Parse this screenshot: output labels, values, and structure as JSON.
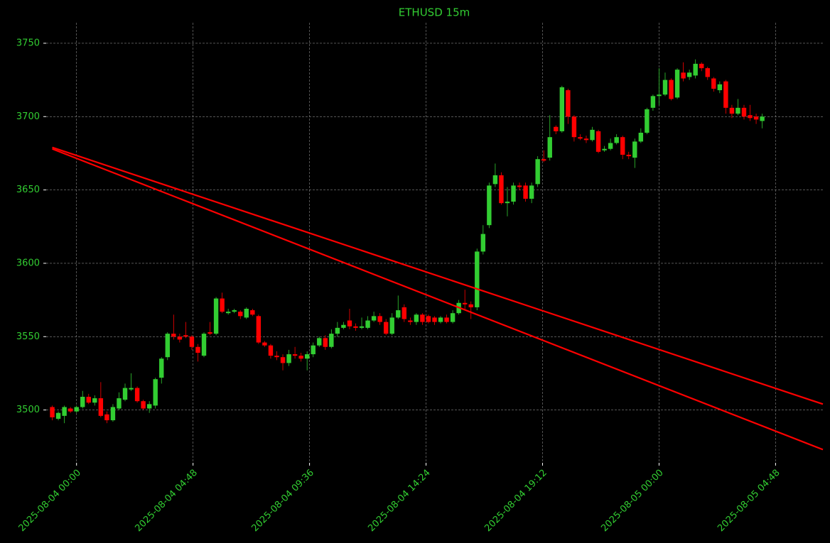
{
  "chart_data": {
    "type": "candlestick",
    "title": "ETHUSD 15m",
    "up_color": "#32cd32",
    "down_color": "#ff0000",
    "grid": true,
    "x": [
      "2025-08-03 23:00",
      "2025-08-03 23:15",
      "2025-08-03 23:30",
      "2025-08-03 23:45",
      "2025-08-04 00:00",
      "2025-08-04 00:15",
      "2025-08-04 00:30",
      "2025-08-04 00:45",
      "2025-08-04 01:00",
      "2025-08-04 01:15",
      "2025-08-04 01:30",
      "2025-08-04 01:45",
      "2025-08-04 02:00",
      "2025-08-04 02:15",
      "2025-08-04 02:30",
      "2025-08-04 02:45",
      "2025-08-04 03:00",
      "2025-08-04 03:15",
      "2025-08-04 03:30",
      "2025-08-04 03:45",
      "2025-08-04 04:00",
      "2025-08-04 04:15",
      "2025-08-04 04:30",
      "2025-08-04 04:45",
      "2025-08-04 05:00",
      "2025-08-04 05:15",
      "2025-08-04 05:30",
      "2025-08-04 05:45",
      "2025-08-04 06:00",
      "2025-08-04 06:15",
      "2025-08-04 06:30",
      "2025-08-04 06:45",
      "2025-08-04 07:00",
      "2025-08-04 07:15",
      "2025-08-04 07:30",
      "2025-08-04 07:45",
      "2025-08-04 08:00",
      "2025-08-04 08:15",
      "2025-08-04 08:30",
      "2025-08-04 08:45",
      "2025-08-04 09:00",
      "2025-08-04 09:15",
      "2025-08-04 09:30",
      "2025-08-04 09:45",
      "2025-08-04 10:00",
      "2025-08-04 10:15",
      "2025-08-04 10:30",
      "2025-08-04 10:45",
      "2025-08-04 11:00",
      "2025-08-04 11:15",
      "2025-08-04 11:30",
      "2025-08-04 11:45",
      "2025-08-04 12:00",
      "2025-08-04 12:15",
      "2025-08-04 12:30",
      "2025-08-04 12:45",
      "2025-08-04 13:00",
      "2025-08-04 13:15",
      "2025-08-04 13:30",
      "2025-08-04 13:45",
      "2025-08-04 14:00",
      "2025-08-04 14:15",
      "2025-08-04 14:30",
      "2025-08-04 14:45",
      "2025-08-04 15:00",
      "2025-08-04 15:15",
      "2025-08-04 15:30",
      "2025-08-04 15:45",
      "2025-08-04 16:00",
      "2025-08-04 16:15",
      "2025-08-04 16:30",
      "2025-08-04 16:45",
      "2025-08-04 17:00",
      "2025-08-04 17:15",
      "2025-08-04 17:30",
      "2025-08-04 17:45",
      "2025-08-04 18:00",
      "2025-08-04 18:15",
      "2025-08-04 18:30",
      "2025-08-04 18:45",
      "2025-08-04 19:00",
      "2025-08-04 19:15",
      "2025-08-04 19:30",
      "2025-08-04 19:45",
      "2025-08-04 20:00",
      "2025-08-04 20:15",
      "2025-08-04 20:30",
      "2025-08-04 20:45",
      "2025-08-04 21:00",
      "2025-08-04 21:15",
      "2025-08-04 21:30",
      "2025-08-04 21:45",
      "2025-08-04 22:00",
      "2025-08-04 22:15",
      "2025-08-04 22:30",
      "2025-08-04 22:45",
      "2025-08-04 23:00",
      "2025-08-04 23:15",
      "2025-08-04 23:30",
      "2025-08-04 23:45",
      "2025-08-05 00:00",
      "2025-08-05 00:15",
      "2025-08-05 00:30",
      "2025-08-05 00:45",
      "2025-08-05 01:00",
      "2025-08-05 01:15",
      "2025-08-05 01:30",
      "2025-08-05 01:45",
      "2025-08-05 02:00",
      "2025-08-05 02:15",
      "2025-08-05 02:30",
      "2025-08-05 02:45",
      "2025-08-05 03:00",
      "2025-08-05 03:15",
      "2025-08-05 03:30",
      "2025-08-05 03:45",
      "2025-08-05 04:00",
      "2025-08-05 04:15"
    ],
    "open": [
      3502,
      3494,
      3496,
      3501,
      3499,
      3502,
      3509,
      3505,
      3508,
      3497,
      3493,
      3501,
      3507,
      3514,
      3515,
      3506,
      3501,
      3503,
      3522,
      3536,
      3552,
      3550,
      3551,
      3550,
      3543,
      3537,
      3553,
      3552,
      3576,
      3566,
      3567,
      3567,
      3563,
      3568,
      3564,
      3546,
      3544,
      3537,
      3536,
      3532,
      3538,
      3537,
      3535,
      3538,
      3544,
      3549,
      3543,
      3552,
      3556,
      3561,
      3557,
      3556,
      3556,
      3561,
      3564,
      3560,
      3552,
      3563,
      3570,
      3561,
      3560,
      3565,
      3564,
      3563,
      3560,
      3563,
      3560,
      3566,
      3573,
      3572,
      3570,
      3608,
      3626,
      3654,
      3660,
      3641,
      3642,
      3653,
      3653,
      3644,
      3654,
      3671,
      3672,
      3693,
      3690,
      3718,
      3700,
      3686,
      3685,
      3684,
      3690,
      3677,
      3678,
      3682,
      3686,
      3674,
      3672,
      3683,
      3689,
      3706,
      3714,
      3715,
      3725,
      3713,
      3730,
      3727,
      3728,
      3736,
      3733,
      3726,
      3718,
      3724,
      3706,
      3702,
      3706,
      3701,
      3700,
      3697
    ],
    "high": [
      3503,
      3499,
      3503,
      3502,
      3503,
      3513,
      3511,
      3510,
      3519,
      3499,
      3504,
      3512,
      3518,
      3525,
      3516,
      3507,
      3506,
      3522,
      3536,
      3553,
      3565,
      3552,
      3560,
      3551,
      3545,
      3553,
      3560,
      3577,
      3580,
      3569,
      3569,
      3568,
      3570,
      3569,
      3565,
      3547,
      3545,
      3540,
      3538,
      3541,
      3543,
      3539,
      3540,
      3546,
      3550,
      3551,
      3555,
      3560,
      3560,
      3569,
      3559,
      3563,
      3564,
      3567,
      3566,
      3562,
      3566,
      3578,
      3572,
      3563,
      3566,
      3566,
      3565,
      3564,
      3564,
      3565,
      3568,
      3575,
      3582,
      3574,
      3610,
      3626,
      3655,
      3668,
      3662,
      3652,
      3655,
      3655,
      3655,
      3655,
      3673,
      3677,
      3701,
      3694,
      3721,
      3719,
      3701,
      3688,
      3687,
      3693,
      3691,
      3680,
      3685,
      3688,
      3687,
      3676,
      3685,
      3692,
      3706,
      3715,
      3733,
      3730,
      3726,
      3733,
      3737,
      3732,
      3739,
      3737,
      3734,
      3727,
      3724,
      3725,
      3708,
      3712,
      3708,
      3708,
      3702,
      3702
    ],
    "low": [
      3493,
      3493,
      3491,
      3498,
      3498,
      3501,
      3504,
      3503,
      3495,
      3491,
      3492,
      3500,
      3506,
      3513,
      3505,
      3500,
      3498,
      3501,
      3518,
      3534,
      3548,
      3546,
      3549,
      3541,
      3533,
      3536,
      3551,
      3551,
      3566,
      3565,
      3566,
      3562,
      3562,
      3564,
      3545,
      3543,
      3535,
      3534,
      3527,
      3530,
      3535,
      3533,
      3527,
      3536,
      3543,
      3541,
      3542,
      3550,
      3555,
      3555,
      3554,
      3555,
      3555,
      3560,
      3558,
      3551,
      3551,
      3562,
      3560,
      3558,
      3558,
      3558,
      3559,
      3558,
      3559,
      3559,
      3559,
      3565,
      3568,
      3562,
      3568,
      3606,
      3624,
      3652,
      3640,
      3632,
      3640,
      3650,
      3642,
      3641,
      3652,
      3669,
      3670,
      3688,
      3689,
      3695,
      3683,
      3684,
      3682,
      3683,
      3675,
      3676,
      3677,
      3681,
      3671,
      3671,
      3665,
      3682,
      3688,
      3704,
      3708,
      3714,
      3711,
      3712,
      3724,
      3725,
      3726,
      3731,
      3725,
      3717,
      3716,
      3702,
      3699,
      3701,
      3698,
      3697,
      3695,
      3692
    ],
    "close": [
      3495,
      3498,
      3502,
      3499,
      3502,
      3509,
      3505,
      3508,
      3496,
      3493,
      3502,
      3508,
      3515,
      3515,
      3506,
      3501,
      3504,
      3521,
      3535,
      3552,
      3550,
      3548,
      3550,
      3543,
      3539,
      3552,
      3552,
      3576,
      3567,
      3567,
      3568,
      3564,
      3569,
      3565,
      3546,
      3544,
      3537,
      3536,
      3532,
      3538,
      3537,
      3535,
      3538,
      3544,
      3549,
      3543,
      3552,
      3556,
      3558,
      3557,
      3556,
      3557,
      3561,
      3564,
      3560,
      3552,
      3563,
      3568,
      3562,
      3560,
      3565,
      3560,
      3560,
      3560,
      3563,
      3560,
      3566,
      3573,
      3572,
      3570,
      3608,
      3620,
      3653,
      3660,
      3641,
      3642,
      3653,
      3652,
      3644,
      3653,
      3671,
      3670,
      3686,
      3690,
      3720,
      3700,
      3686,
      3685,
      3684,
      3691,
      3676,
      3678,
      3682,
      3686,
      3674,
      3673,
      3683,
      3689,
      3705,
      3714,
      3715,
      3725,
      3712,
      3732,
      3726,
      3730,
      3736,
      3733,
      3727,
      3719,
      3722,
      3706,
      3702,
      3706,
      3700,
      3699,
      3698,
      3700
    ],
    "lines": [
      {
        "color": "#ff0000",
        "x": [
          "2025-08-03 23:00",
          "2025-08-05 06:45"
        ],
        "values": [
          3679,
          3504
        ]
      },
      {
        "color": "#ff0000",
        "x": [
          "2025-08-03 23:00",
          "2025-08-05 06:45"
        ],
        "values": [
          3678,
          3473
        ]
      }
    ],
    "xlim": [
      "2025-08-03 22:45",
      "2025-08-05 06:45"
    ],
    "xticks": [
      "2025-08-04 00:00",
      "2025-08-04 04:48",
      "2025-08-04 09:36",
      "2025-08-04 14:24",
      "2025-08-04 19:12",
      "2025-08-05 00:00",
      "2025-08-05 04:48"
    ],
    "ylim": [
      3464,
      3764
    ],
    "yticks": [
      3500,
      3550,
      3600,
      3650,
      3700,
      3750
    ]
  }
}
